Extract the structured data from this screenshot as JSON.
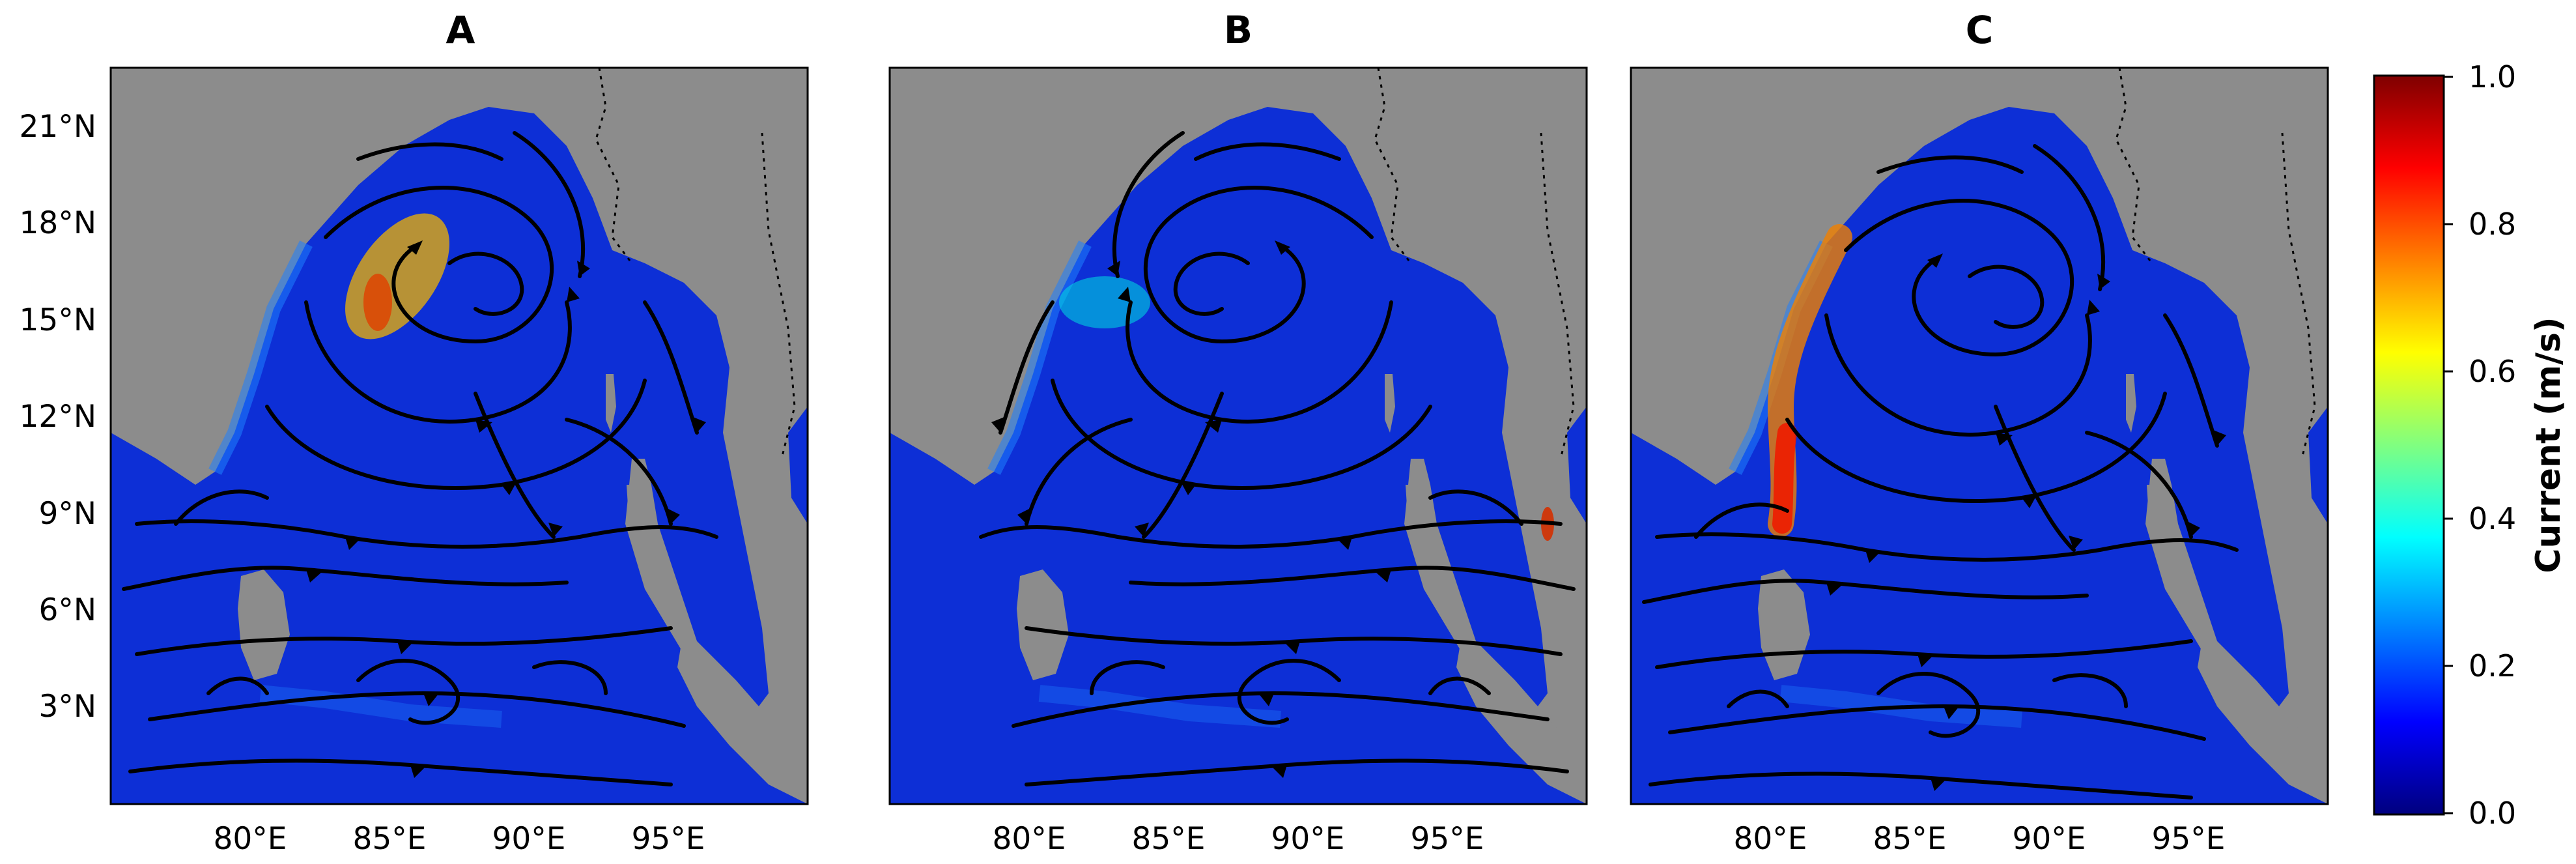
{
  "panels": [
    {
      "id": "a",
      "title": "A",
      "hotspot": "#f0b400"
    },
    {
      "id": "b",
      "title": "B",
      "hotspot": "#d43000"
    },
    {
      "id": "c",
      "title": "C",
      "hotspot": "#ee1c00"
    }
  ],
  "latitude_labels": [
    "21°N",
    "18°N",
    "15°N",
    "12°N",
    "9°N",
    "6°N",
    "3°N"
  ],
  "longitude_labels": [
    "80°E",
    "85°E",
    "90°E",
    "95°E"
  ],
  "colorbar": {
    "label": "Current (m/s)",
    "ticks": [
      "0.0",
      "0.2",
      "0.4",
      "0.6",
      "0.8",
      "1.0"
    ],
    "range": [
      0.0,
      1.0
    ],
    "colors": [
      "#00007f",
      "#0000ff",
      "#0080ff",
      "#00ffff",
      "#80ff80",
      "#ffff00",
      "#ff8000",
      "#ff0000",
      "#7f0000"
    ]
  },
  "colors": {
    "land": "#8c8c8c",
    "ocean": "#0d2fd6",
    "streamline": "#000000"
  }
}
